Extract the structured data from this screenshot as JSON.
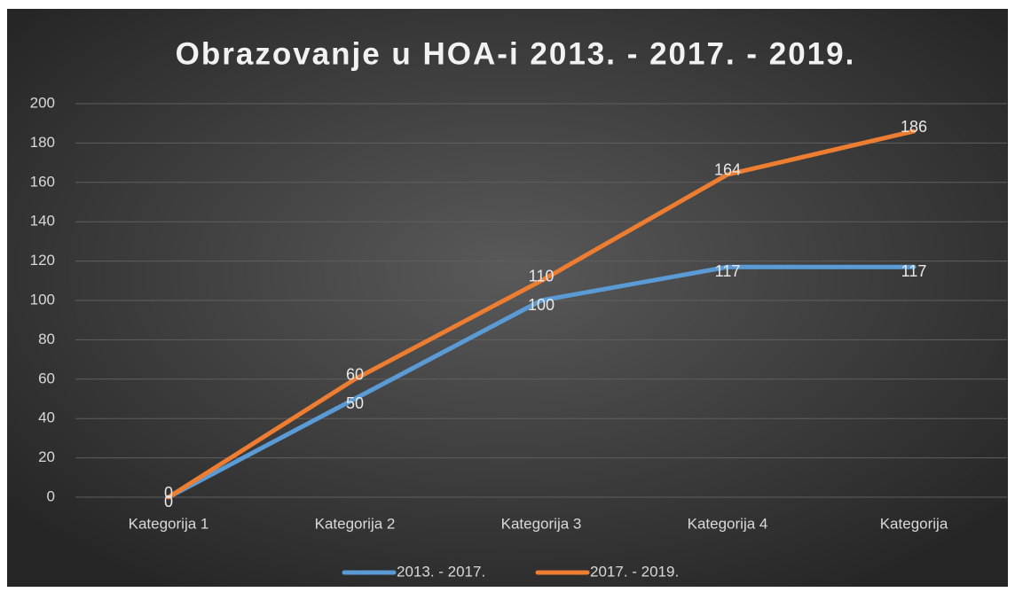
{
  "chart_data": {
    "type": "line",
    "title": "Obrazovanje u HOA-i 2013. - 2017. - 2019.",
    "categories": [
      "Kategorija 1",
      "Kategorija 2",
      "Kategorija 3",
      "Kategorija 4",
      "Kategorija"
    ],
    "series": [
      {
        "name": "2013. - 2017.",
        "color": "#5b9bd5",
        "values": [
          0,
          50,
          100,
          117,
          117
        ]
      },
      {
        "name": "2017. - 2019.",
        "color": "#ed7d31",
        "values": [
          0,
          60,
          110,
          164,
          186
        ]
      }
    ],
    "ylim": [
      0,
      200
    ],
    "yticks": [
      0,
      20,
      40,
      60,
      80,
      100,
      120,
      140,
      160,
      180,
      200
    ],
    "grid": true,
    "legend": "bottom"
  }
}
